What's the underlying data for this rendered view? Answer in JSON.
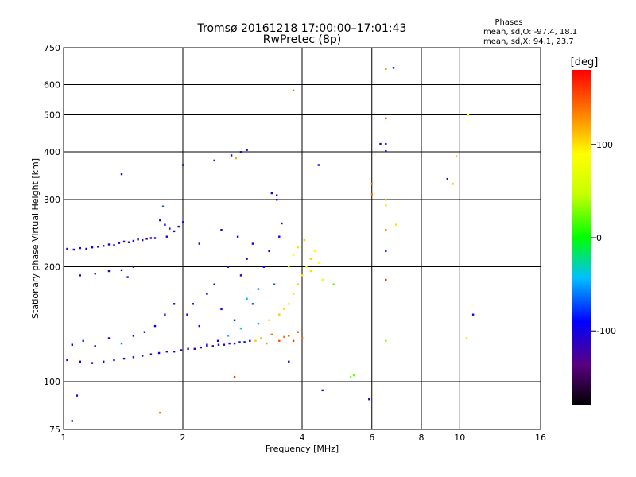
{
  "chart_data": {
    "type": "scatter",
    "title": "Tromsø 20161218 17:00:00–17:01:43",
    "subtitle": "RwPretec (8p)",
    "xlabel": "Frequency [MHz]",
    "ylabel": "Stationary phase Virtual Height [km]",
    "x_scale": "log",
    "y_scale": "log",
    "xlim": [
      1,
      16
    ],
    "ylim": [
      75,
      750
    ],
    "x_ticks": [
      1,
      2,
      4,
      6,
      8,
      10,
      16
    ],
    "y_ticks": [
      75,
      100,
      200,
      300,
      400,
      500,
      600,
      750
    ],
    "grid": true,
    "phase_stats": {
      "heading": "Phases",
      "o_line": "mean, sd,O: -97.4, 18.1",
      "x_line": "mean, sd,X:  94.1, 23.7"
    },
    "colorbar": {
      "label": "[deg]",
      "min": -180,
      "max": 180,
      "ticks": [
        100,
        0,
        -100
      ]
    },
    "series": [
      {
        "points": [
          [
            1.02,
            223,
            -100
          ],
          [
            1.06,
            222,
            -105
          ],
          [
            1.1,
            224,
            -110
          ],
          [
            1.14,
            223,
            -100
          ],
          [
            1.18,
            225,
            -95
          ],
          [
            1.22,
            226,
            -110
          ],
          [
            1.26,
            227,
            -120
          ],
          [
            1.3,
            229,
            -100
          ],
          [
            1.34,
            228,
            -95
          ],
          [
            1.38,
            231,
            -105
          ],
          [
            1.42,
            233,
            -110
          ],
          [
            1.46,
            232,
            -100
          ],
          [
            1.5,
            234,
            -90
          ],
          [
            1.54,
            236,
            -105
          ],
          [
            1.58,
            235,
            -115
          ],
          [
            1.62,
            237,
            -100
          ],
          [
            1.66,
            238,
            -95
          ],
          [
            1.7,
            238,
            -110
          ],
          [
            1.02,
            114,
            -100
          ],
          [
            1.1,
            113,
            -110
          ],
          [
            1.18,
            112,
            -105
          ],
          [
            1.26,
            113,
            -100
          ],
          [
            1.34,
            114,
            -115
          ],
          [
            1.42,
            115,
            -95
          ],
          [
            1.5,
            116,
            -100
          ],
          [
            1.58,
            117,
            -110
          ],
          [
            1.66,
            118,
            -105
          ],
          [
            1.74,
            119,
            -100
          ],
          [
            1.82,
            120,
            -95
          ],
          [
            1.9,
            120,
            -110
          ],
          [
            1.98,
            121,
            -100
          ],
          [
            2.06,
            122,
            -105
          ],
          [
            2.14,
            122,
            -115
          ],
          [
            2.22,
            123,
            -100
          ],
          [
            2.3,
            124,
            -90
          ],
          [
            2.38,
            124,
            -105
          ],
          [
            2.46,
            125,
            -100
          ],
          [
            2.54,
            125,
            -110
          ],
          [
            2.62,
            126,
            -95
          ],
          [
            2.7,
            126,
            -100
          ],
          [
            2.78,
            127,
            -85
          ],
          [
            2.86,
            127,
            -90
          ],
          [
            2.95,
            128,
            -100
          ],
          [
            1.05,
            125,
            -95
          ],
          [
            1.12,
            128,
            -80
          ],
          [
            1.2,
            124,
            -110
          ],
          [
            1.3,
            130,
            -100
          ],
          [
            1.4,
            126,
            -60
          ],
          [
            1.5,
            132,
            -90
          ],
          [
            1.6,
            135,
            -100
          ],
          [
            1.7,
            140,
            -95
          ],
          [
            1.8,
            150,
            -100
          ],
          [
            1.9,
            160,
            -110
          ],
          [
            1.1,
            190,
            -120
          ],
          [
            1.2,
            192,
            -130
          ],
          [
            1.3,
            195,
            -110
          ],
          [
            1.4,
            196,
            -100
          ],
          [
            1.5,
            200,
            -120
          ],
          [
            1.45,
            188,
            -100
          ],
          [
            1.75,
            265,
            -100
          ],
          [
            1.8,
            258,
            -90
          ],
          [
            1.85,
            252,
            -100
          ],
          [
            1.9,
            248,
            -110
          ],
          [
            1.95,
            255,
            -95
          ],
          [
            2.0,
            262,
            -100
          ],
          [
            1.78,
            288,
            -70
          ],
          [
            1.82,
            240,
            -100
          ],
          [
            2.05,
            150,
            -100
          ],
          [
            2.12,
            160,
            -110
          ],
          [
            2.2,
            140,
            -95
          ],
          [
            2.3,
            170,
            -100
          ],
          [
            2.4,
            180,
            -90
          ],
          [
            2.5,
            155,
            -100
          ],
          [
            2.6,
            200,
            -100
          ],
          [
            2.7,
            145,
            -80
          ],
          [
            2.8,
            190,
            -100
          ],
          [
            2.9,
            210,
            -90
          ],
          [
            3.0,
            160,
            -70
          ],
          [
            3.1,
            175,
            -60
          ],
          [
            3.2,
            200,
            -90
          ],
          [
            3.3,
            220,
            -100
          ],
          [
            3.4,
            180,
            -70
          ],
          [
            3.5,
            240,
            -100
          ],
          [
            3.55,
            260,
            -110
          ],
          [
            3.45,
            300,
            -100
          ],
          [
            2.2,
            230,
            -100
          ],
          [
            2.5,
            250,
            -100
          ],
          [
            2.75,
            240,
            -90
          ],
          [
            3.0,
            230,
            -100
          ],
          [
            2.6,
            132,
            -40
          ],
          [
            2.8,
            138,
            -30
          ],
          [
            3.1,
            142,
            -50
          ],
          [
            2.9,
            165,
            -45
          ],
          [
            2.3,
            125,
            -100
          ],
          [
            2.45,
            128,
            -95
          ],
          [
            3.05,
            128,
            110
          ],
          [
            3.15,
            130,
            120
          ],
          [
            3.25,
            126,
            130
          ],
          [
            3.35,
            133,
            140
          ],
          [
            3.5,
            128,
            150
          ],
          [
            3.6,
            131,
            140
          ],
          [
            3.7,
            132,
            150
          ],
          [
            3.8,
            128,
            160
          ],
          [
            3.9,
            135,
            150
          ],
          [
            4.0,
            130,
            140
          ],
          [
            3.3,
            145,
            100
          ],
          [
            3.5,
            150,
            110
          ],
          [
            3.6,
            155,
            105
          ],
          [
            3.7,
            160,
            95
          ],
          [
            3.8,
            170,
            100
          ],
          [
            3.9,
            180,
            110
          ],
          [
            4.0,
            190,
            100
          ],
          [
            4.1,
            200,
            95
          ],
          [
            4.2,
            210,
            105
          ],
          [
            4.3,
            220,
            90
          ],
          [
            3.7,
            200,
            80
          ],
          [
            3.8,
            215,
            90
          ],
          [
            3.9,
            225,
            100
          ],
          [
            4.05,
            235,
            110
          ],
          [
            4.2,
            195,
            100
          ],
          [
            4.4,
            205,
            90
          ],
          [
            4.5,
            185,
            70
          ],
          [
            4.8,
            180,
            20
          ],
          [
            5.3,
            103,
            30
          ],
          [
            5.4,
            104,
            20
          ],
          [
            6.5,
            660,
            130
          ],
          [
            6.5,
            490,
            160
          ],
          [
            6.5,
            420,
            -100
          ],
          [
            6.5,
            402,
            -110
          ],
          [
            6.3,
            420,
            -110
          ],
          [
            6.8,
            665,
            -110
          ],
          [
            6.5,
            300,
            110
          ],
          [
            6.5,
            290,
            100
          ],
          [
            6.5,
            250,
            130
          ],
          [
            6.5,
            220,
            -80
          ],
          [
            6.5,
            185,
            170
          ],
          [
            6.5,
            128,
            30
          ],
          [
            6.0,
            330,
            130
          ],
          [
            6.0,
            310,
            140
          ],
          [
            6.9,
            258,
            100
          ],
          [
            9.3,
            340,
            -120
          ],
          [
            9.6,
            330,
            110
          ],
          [
            9.8,
            390,
            110
          ],
          [
            10.5,
            500,
            90
          ],
          [
            10.4,
            130,
            100
          ],
          [
            10.8,
            150,
            -100
          ],
          [
            2.8,
            400,
            -110
          ],
          [
            2.9,
            405,
            -100
          ],
          [
            2.65,
            392,
            -100
          ],
          [
            2.72,
            385,
            120
          ],
          [
            2.4,
            380,
            -100
          ],
          [
            2.0,
            370,
            -100
          ],
          [
            3.45,
            308,
            -110
          ],
          [
            3.35,
            312,
            -100
          ],
          [
            4.4,
            370,
            -100
          ],
          [
            3.8,
            580,
            140
          ],
          [
            1.4,
            350,
            -110
          ],
          [
            1.08,
            92,
            -110
          ],
          [
            1.05,
            79,
            -110
          ],
          [
            1.75,
            83,
            140
          ],
          [
            2.7,
            103,
            160
          ],
          [
            4.5,
            95,
            -110
          ],
          [
            5.9,
            90,
            -110
          ],
          [
            3.7,
            113,
            -110
          ]
        ]
      }
    ]
  }
}
